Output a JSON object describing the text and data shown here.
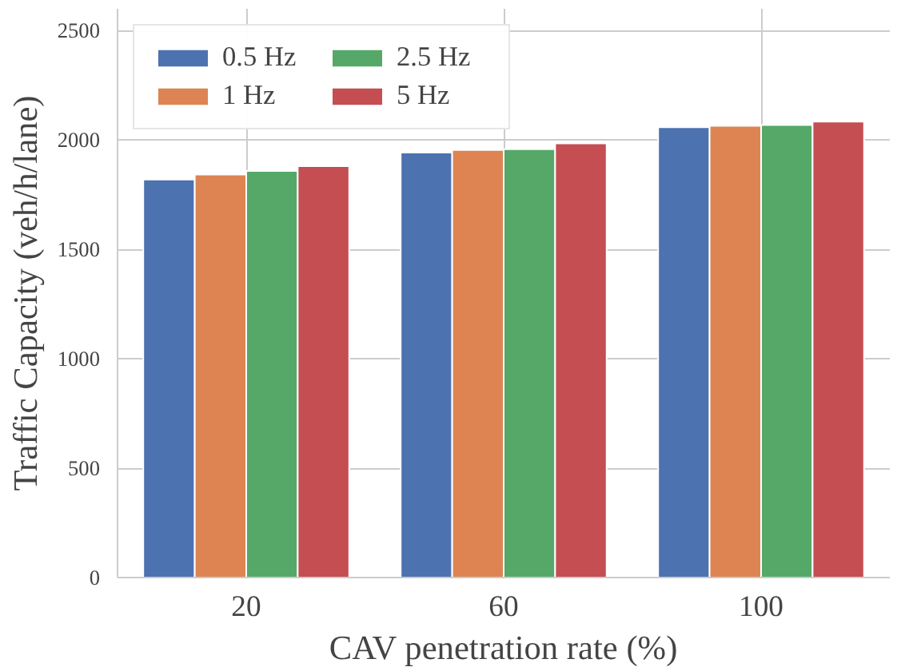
{
  "chart_data": {
    "type": "bar",
    "xlabel": "CAV penetration rate (%)",
    "ylabel": "Traffic Capacity (veh/h/lane)",
    "categories": [
      "20",
      "60",
      "100"
    ],
    "series": [
      {
        "name": "0.5 Hz",
        "color": "#4c72b0",
        "values": [
          1819,
          1943,
          2059
        ]
      },
      {
        "name": "1 Hz",
        "color": "#dd8452",
        "values": [
          1842,
          1955,
          2065
        ]
      },
      {
        "name": "2.5 Hz",
        "color": "#55a868",
        "values": [
          1859,
          1958,
          2069
        ]
      },
      {
        "name": "5 Hz",
        "color": "#c44e52",
        "values": [
          1881,
          1985,
          2084
        ]
      }
    ],
    "ylim": [
      0,
      2600
    ],
    "yticks": [
      0,
      500,
      1000,
      1500,
      2000,
      2500
    ],
    "grid": true,
    "legend": "top left"
  }
}
